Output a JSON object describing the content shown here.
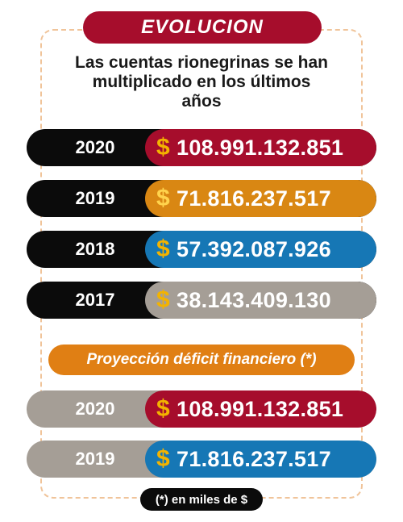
{
  "title": "EVOLUCION",
  "subtitle": "Las cuentas rionegrinas se han multiplicado en los últimos años",
  "rows": [
    {
      "year": "2020",
      "amount": "108.991.132.851",
      "color": "#a60d2c"
    },
    {
      "year": "2019",
      "amount": "71.816.237.517",
      "color": "#d98713"
    },
    {
      "year": "2018",
      "amount": "57.392.087.926",
      "color": "#1677b5"
    },
    {
      "year": "2017",
      "amount": "38.143.409.130",
      "color": "#a59e96"
    }
  ],
  "projection": {
    "title": "Proyección déficit financiero (*)",
    "rows": [
      {
        "year": "2020",
        "amount": "108.991.132.851",
        "color": "#a60d2c"
      },
      {
        "year": "2019",
        "amount": "71.816.237.517",
        "color": "#1677b5"
      }
    ]
  },
  "currency_symbol": "$",
  "footnote": "(*) en miles de $"
}
